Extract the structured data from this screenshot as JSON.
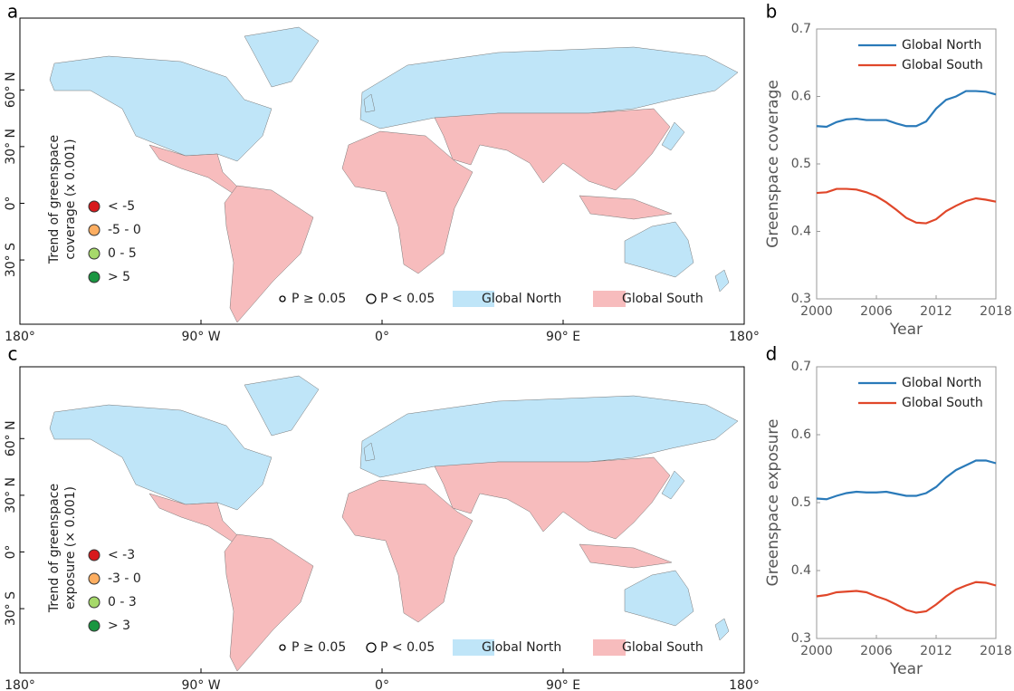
{
  "chart_data": [
    {
      "type": "map",
      "panel": "a",
      "legend_title": [
        "Trend of greenspace",
        "coverage (x 0.001)"
      ],
      "classes": [
        {
          "label": "< -5",
          "color": "#d7191c"
        },
        {
          "label": "-5 - 0",
          "color": "#fdae61"
        },
        {
          "label": "0 - 5",
          "color": "#a6d96a"
        },
        {
          "label": "> 5",
          "color": "#1a9641"
        }
      ],
      "significance": [
        "P ≥ 0.05",
        "P < 0.05"
      ],
      "regions": [
        {
          "name": "Global North",
          "color": "#bfe5f8"
        },
        {
          "name": "Global South",
          "color": "#f7bcbd"
        }
      ],
      "xlim": [
        -180,
        180
      ],
      "xticks": [
        {
          "value": -180,
          "label": "180°"
        },
        {
          "value": -90,
          "label": "90° W"
        },
        {
          "value": 0,
          "label": "0°"
        },
        {
          "value": 90,
          "label": "90° E"
        },
        {
          "value": 180,
          "label": "180°"
        }
      ],
      "ylim": [
        -64,
        98
      ],
      "yticks": [
        {
          "value": 60,
          "label": "60° N"
        },
        {
          "value": 30,
          "label": "30° N"
        },
        {
          "value": 0,
          "label": "0°"
        },
        {
          "value": -30,
          "label": "30° S"
        }
      ]
    },
    {
      "type": "line",
      "panel": "b",
      "ylabel": "Greenspace coverage",
      "xlabel": "Year",
      "x": [
        2000,
        2001,
        2002,
        2003,
        2004,
        2005,
        2006,
        2007,
        2008,
        2009,
        2010,
        2011,
        2012,
        2013,
        2014,
        2015,
        2016,
        2017,
        2018
      ],
      "xlim": [
        2000,
        2018
      ],
      "xticks": [
        2000,
        2006,
        2012,
        2018
      ],
      "ylim": [
        0.3,
        0.7
      ],
      "yticks": [
        0.3,
        0.4,
        0.5,
        0.6,
        0.7
      ],
      "series": [
        {
          "name": "Global North",
          "color": "#2a7ab9",
          "values": [
            0.556,
            0.555,
            0.562,
            0.566,
            0.567,
            0.565,
            0.565,
            0.565,
            0.56,
            0.556,
            0.556,
            0.563,
            0.582,
            0.595,
            0.6,
            0.608,
            0.608,
            0.607,
            0.603
          ]
        },
        {
          "name": "Global South",
          "color": "#e0472a",
          "values": [
            0.457,
            0.458,
            0.463,
            0.463,
            0.462,
            0.458,
            0.452,
            0.443,
            0.432,
            0.42,
            0.413,
            0.412,
            0.418,
            0.43,
            0.438,
            0.445,
            0.449,
            0.447,
            0.444
          ]
        }
      ]
    },
    {
      "type": "map",
      "panel": "c",
      "legend_title": [
        "Trend of greenspace",
        "exposure (× 0.001)"
      ],
      "classes": [
        {
          "label": "< -3",
          "color": "#d7191c"
        },
        {
          "label": "-3 - 0",
          "color": "#fdae61"
        },
        {
          "label": "0 - 3",
          "color": "#a6d96a"
        },
        {
          "label": "> 3",
          "color": "#1a9641"
        }
      ],
      "significance": [
        "P ≥ 0.05",
        "P < 0.05"
      ],
      "regions": [
        {
          "name": "Global North",
          "color": "#bfe5f8"
        },
        {
          "name": "Global South",
          "color": "#f7bcbd"
        }
      ],
      "xlim": [
        -180,
        180
      ],
      "xticks": [
        {
          "value": -180,
          "label": "180°"
        },
        {
          "value": -90,
          "label": "90° W"
        },
        {
          "value": 0,
          "label": "0°"
        },
        {
          "value": 90,
          "label": "90° E"
        },
        {
          "value": 180,
          "label": "180°"
        }
      ],
      "ylim": [
        -64,
        98
      ],
      "yticks": [
        {
          "value": 60,
          "label": "60° N"
        },
        {
          "value": 30,
          "label": "30° N"
        },
        {
          "value": 0,
          "label": "0°"
        },
        {
          "value": -30,
          "label": "30° S"
        }
      ]
    },
    {
      "type": "line",
      "panel": "d",
      "ylabel": "Greenspace exposure",
      "xlabel": "Year",
      "x": [
        2000,
        2001,
        2002,
        2003,
        2004,
        2005,
        2006,
        2007,
        2008,
        2009,
        2010,
        2011,
        2012,
        2013,
        2014,
        2015,
        2016,
        2017,
        2018
      ],
      "xlim": [
        2000,
        2018
      ],
      "xticks": [
        2000,
        2006,
        2012,
        2018
      ],
      "ylim": [
        0.3,
        0.7
      ],
      "yticks": [
        0.3,
        0.4,
        0.5,
        0.6,
        0.7
      ],
      "series": [
        {
          "name": "Global North",
          "color": "#2a7ab9",
          "values": [
            0.506,
            0.505,
            0.51,
            0.514,
            0.516,
            0.515,
            0.515,
            0.516,
            0.513,
            0.51,
            0.51,
            0.514,
            0.523,
            0.537,
            0.548,
            0.555,
            0.562,
            0.562,
            0.558
          ]
        },
        {
          "name": "Global South",
          "color": "#e0472a",
          "values": [
            0.362,
            0.364,
            0.368,
            0.369,
            0.37,
            0.368,
            0.362,
            0.357,
            0.35,
            0.342,
            0.338,
            0.34,
            0.35,
            0.362,
            0.372,
            0.378,
            0.383,
            0.382,
            0.378
          ]
        }
      ]
    }
  ]
}
